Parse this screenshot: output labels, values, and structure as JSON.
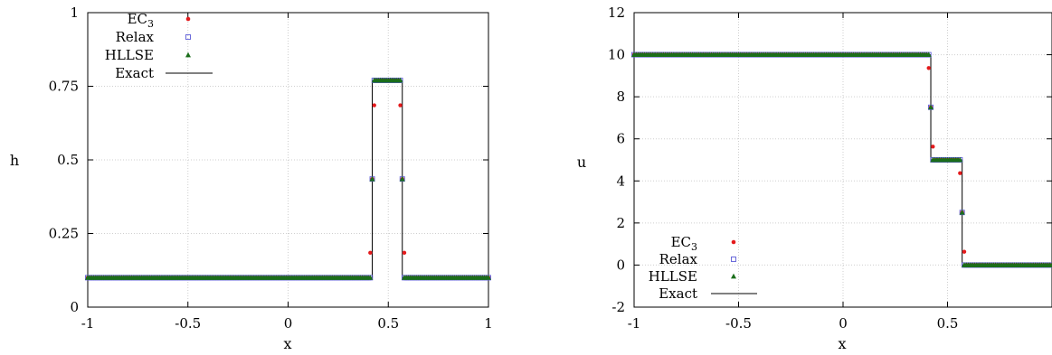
{
  "chart_data": [
    {
      "type": "scatter",
      "xlabel": "x",
      "ylabel": "h",
      "xlim": [
        -1,
        1
      ],
      "ylim": [
        0,
        1
      ],
      "xticks": [
        "-1",
        "-0.5",
        "0",
        "0.5",
        "1"
      ],
      "yticks": [
        "0",
        "0.25",
        "0.5",
        "0.75",
        "1"
      ],
      "grid": true,
      "legend_position": "top-left",
      "legend": [
        "EC3",
        "Relax",
        "HLLSE",
        "Exact"
      ],
      "profile": {
        "left_state": 0.1,
        "middle_state": 0.77,
        "right_state": 0.1,
        "jump_left_x": 0.42,
        "jump_right_x": 0.57
      },
      "series": [
        {
          "name": "EC3",
          "marker": "filled-circle",
          "color": "#e41a1c"
        },
        {
          "name": "Relax",
          "marker": "open-square",
          "color": "#5b5bd6"
        },
        {
          "name": "HLLSE",
          "marker": "filled-triangle",
          "color": "#1a6e1a"
        },
        {
          "name": "Exact",
          "marker": "line",
          "color": "#000000"
        }
      ]
    },
    {
      "type": "scatter",
      "xlabel": "x",
      "ylabel": "u",
      "xlim": [
        -1,
        1
      ],
      "ylim": [
        -2,
        12
      ],
      "xticks": [
        "-1",
        "-0.5",
        "0",
        "0.5"
      ],
      "yticks": [
        "-2",
        "0",
        "2",
        "4",
        "6",
        "8",
        "10",
        "12"
      ],
      "grid": true,
      "legend_position": "bottom-left",
      "legend": [
        "EC3",
        "Relax",
        "HLLSE",
        "Exact"
      ],
      "profile": {
        "left_state": 10,
        "middle_state": 5,
        "right_state": 0,
        "jump_left_x": 0.42,
        "jump_right_x": 0.57
      },
      "series": [
        {
          "name": "EC3",
          "marker": "filled-circle",
          "color": "#e41a1c"
        },
        {
          "name": "Relax",
          "marker": "open-square",
          "color": "#5b5bd6"
        },
        {
          "name": "HLLSE",
          "marker": "filled-triangle",
          "color": "#1a6e1a"
        },
        {
          "name": "Exact",
          "marker": "line",
          "color": "#000000"
        }
      ]
    }
  ]
}
